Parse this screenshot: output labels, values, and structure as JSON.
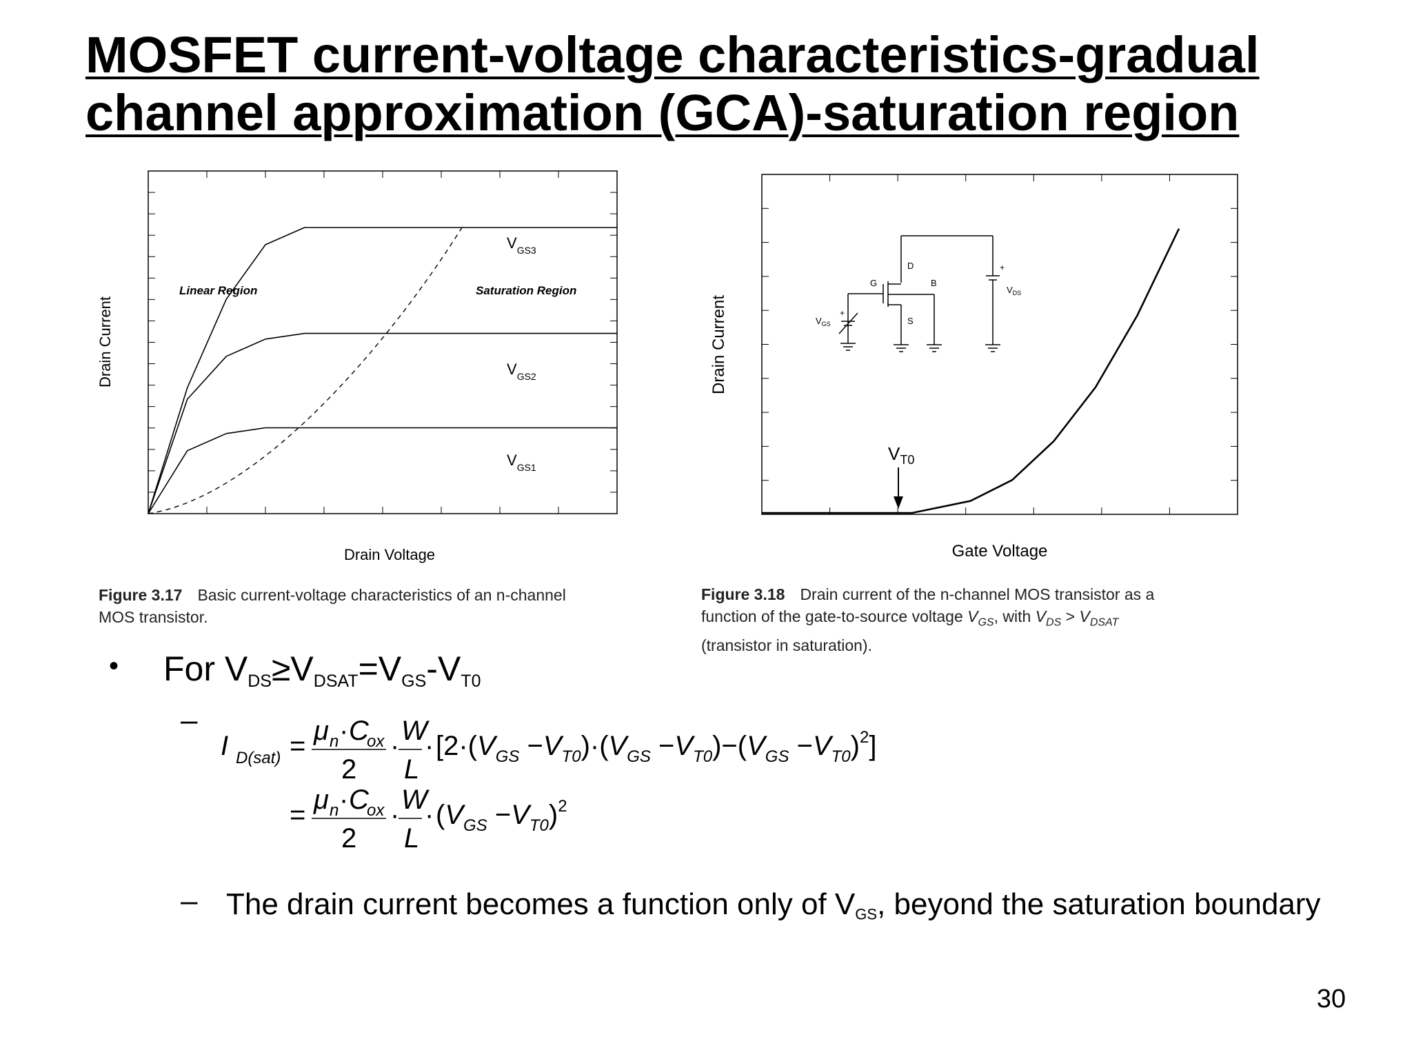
{
  "slide": {
    "title_line1": "MOSFET current-voltage characteristics-gradual",
    "title_line2": "channel approximation (GCA)-saturation region",
    "page_number": "30"
  },
  "figure_left": {
    "ylabel": "Drain Current",
    "xlabel": "Drain Voltage",
    "region_linear": "Linear Region",
    "region_saturation": "Saturation Region",
    "curve_labels": [
      {
        "main": "V",
        "sub": "GS3"
      },
      {
        "main": "V",
        "sub": "GS2"
      },
      {
        "main": "V",
        "sub": "GS1"
      }
    ],
    "caption_label": "Figure 3.17",
    "caption_text_line1": "Basic current-voltage characteristics of an n-channel",
    "caption_text_line2": "MOS transistor."
  },
  "figure_right": {
    "ylabel": "Drain Current",
    "xlabel": "Gate Voltage",
    "threshold_label": {
      "main": "V",
      "sub": "T0"
    },
    "circuit": {
      "D": "D",
      "G": "G",
      "B": "B",
      "S": "S",
      "vgs": {
        "main": "V",
        "sub": "GS"
      },
      "vds": {
        "main": "V",
        "sub": "DS"
      },
      "plus": "+"
    },
    "caption_label": "Figure 3.18",
    "caption_text_line1": "Drain current of the n-channel MOS transistor as a",
    "caption_text_line2_a": "function of the gate-to-source voltage ",
    "caption_text_line2_b": ", with ",
    "caption_vgs": "V",
    "caption_vgs_sub": "GS",
    "caption_vds": "V",
    "caption_vds_sub": "DS",
    "caption_gt": " > ",
    "caption_vdsat": "V",
    "caption_vdsat_sub": "DSAT",
    "caption_text_line3": "(transistor in saturation)."
  },
  "bullet": {
    "marker": "•",
    "text_for": "For V",
    "sub_ds": "DS",
    "geq": "≥V",
    "sub_dsat": "DSAT",
    "eq_v": "=V",
    "sub_gs": "GS",
    "minus_v": "-V",
    "sub_t0": "T0"
  },
  "sub_bullets": {
    "dash": "–",
    "equation": {
      "I": "I",
      "D_sat": "D(sat)",
      "eq": "=",
      "mu": "μ",
      "n": "n",
      "dot": "·",
      "C": "C",
      "ox": "ox",
      "two": "2",
      "W": "W",
      "L": "L",
      "bracket_content": "[2·(V",
      "GS": "GS",
      "T0": "T0",
      "sq": "2"
    },
    "last_a": "The drain current becomes a function only of V",
    "last_sub": "GS",
    "last_b": ", beyond the saturation boundary"
  },
  "chart_data": [
    {
      "type": "line",
      "title": "",
      "xlabel": "Drain Voltage",
      "ylabel": "Drain Current",
      "series": [
        {
          "name": "V_GS3",
          "x": [
            0,
            0.5,
            1,
            1.5,
            2,
            2.5,
            3,
            3.5,
            4,
            6
          ],
          "y": [
            0,
            0.44,
            0.75,
            0.94,
            1.0,
            1.0,
            1.0,
            1.0,
            1.0,
            1.0
          ]
        },
        {
          "name": "V_GS2",
          "x": [
            0,
            0.5,
            1,
            1.5,
            2,
            2.5,
            3,
            6
          ],
          "y": [
            0,
            0.4,
            0.55,
            0.61,
            0.63,
            0.63,
            0.63,
            0.63
          ]
        },
        {
          "name": "V_GS1",
          "x": [
            0,
            0.5,
            1,
            1.5,
            2,
            6
          ],
          "y": [
            0,
            0.22,
            0.28,
            0.3,
            0.3,
            0.3
          ]
        }
      ],
      "annotations": [
        "Linear Region",
        "Saturation Region"
      ]
    },
    {
      "type": "line",
      "title": "",
      "xlabel": "Gate Voltage",
      "ylabel": "Drain Current",
      "series": [
        {
          "name": "I_D",
          "x": [
            0,
            0.36,
            0.5,
            0.6,
            0.7,
            0.8,
            0.9,
            1.0
          ],
          "y": [
            0,
            0,
            0.04,
            0.11,
            0.24,
            0.42,
            0.66,
            0.95
          ]
        }
      ],
      "annotations": [
        "V_T0"
      ]
    }
  ]
}
